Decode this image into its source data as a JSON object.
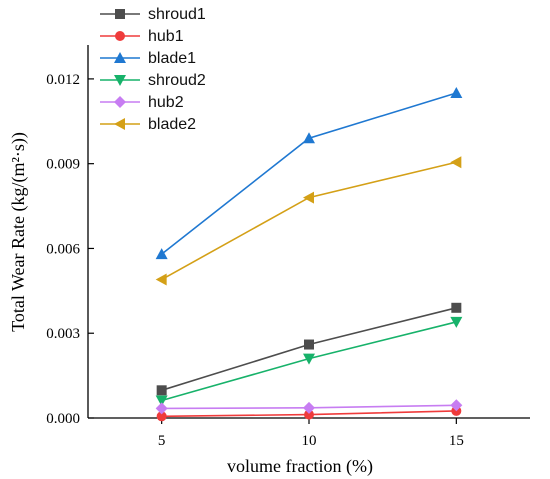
{
  "chart_data": {
    "type": "line",
    "x": [
      5,
      10,
      15
    ],
    "xticks": [
      "5",
      "10",
      "15"
    ],
    "xlim": [
      2.5,
      17.5
    ],
    "ylim": [
      0,
      0.0132
    ],
    "yticks": [
      "0.000",
      "0.003",
      "0.006",
      "0.009",
      "0.012"
    ],
    "ytick_values": [
      0,
      0.003,
      0.006,
      0.009,
      0.012
    ],
    "xlabel": "volume fraction (%)",
    "ylabel": "Total Wear Rate (kg/(m²·s))",
    "legend_position": "top-left",
    "grid": false,
    "series": [
      {
        "name": "shroud1",
        "marker": "square",
        "color": "#4d4d4d",
        "values": [
          0.00098,
          0.0026,
          0.0039
        ]
      },
      {
        "name": "hub1",
        "marker": "circle",
        "color": "#ef3b3b",
        "values": [
          6e-05,
          0.00012,
          0.00025
        ]
      },
      {
        "name": "blade1",
        "marker": "triangle-up",
        "color": "#1f78d1",
        "values": [
          0.0058,
          0.0099,
          0.0115
        ]
      },
      {
        "name": "shroud2",
        "marker": "triangle-down",
        "color": "#17b26a",
        "values": [
          0.00062,
          0.0021,
          0.0034
        ]
      },
      {
        "name": "hub2",
        "marker": "diamond",
        "color": "#c77df2",
        "values": [
          0.00034,
          0.00036,
          0.00045
        ]
      },
      {
        "name": "blade2",
        "marker": "triangle-left",
        "color": "#d4a017",
        "values": [
          0.0049,
          0.0078,
          0.00905
        ]
      }
    ]
  }
}
